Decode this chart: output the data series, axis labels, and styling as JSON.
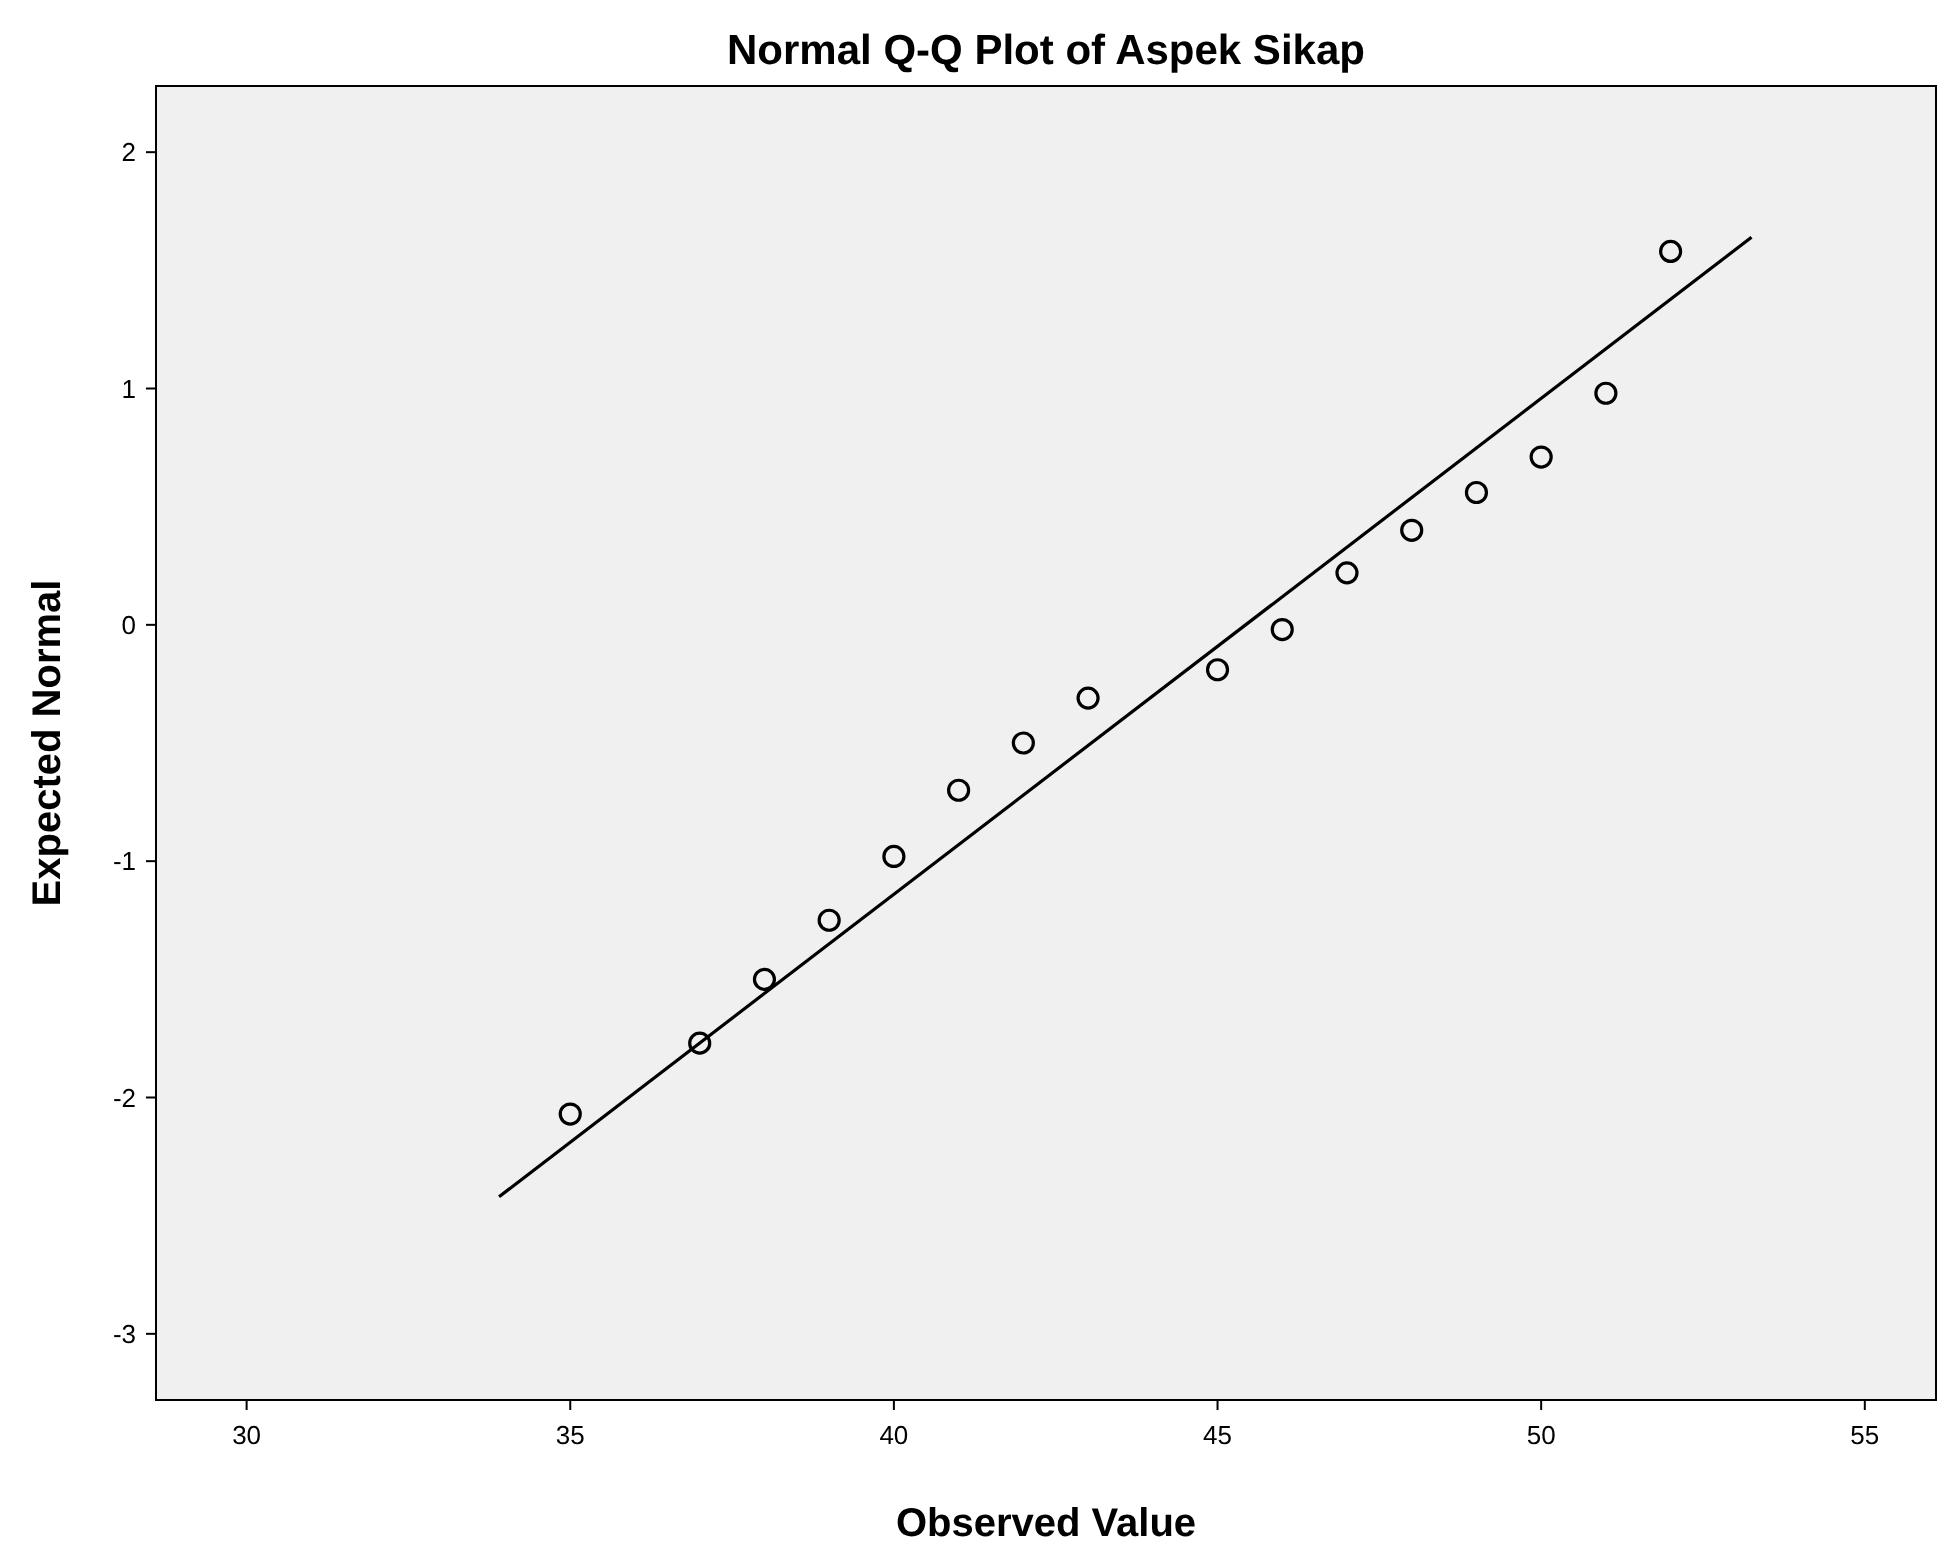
{
  "chart_data": {
    "type": "scatter",
    "title": "Normal Q-Q Plot of Aspek Sikap",
    "xlabel": "Observed Value",
    "ylabel": "Expected Normal",
    "xlim": [
      28.6,
      56.1
    ],
    "xticks": [
      30,
      35,
      40,
      45,
      50,
      55
    ],
    "ylim": [
      -3.28,
      2.28
    ],
    "yticks": [
      -3,
      -2,
      -1,
      0,
      1,
      2
    ],
    "grid": false,
    "series": [
      {
        "color": "#000000",
        "marker": "circle",
        "x": [
          35,
          37,
          38,
          39,
          40,
          41,
          42,
          43,
          45,
          46,
          47,
          48,
          49,
          50,
          51,
          52
        ],
        "values": [
          -2.07,
          -1.77,
          -1.5,
          -1.25,
          -0.98,
          -0.7,
          -0.5,
          -0.31,
          -0.19,
          -0.02,
          0.22,
          0.4,
          0.56,
          0.71,
          0.98,
          1.58
        ]
      },
      {
        "type": "line",
        "color": "#000000",
        "marker": "none",
        "line_style": "solid",
        "x": [
          33.9,
          53.25
        ],
        "values": [
          -2.42,
          1.64
        ]
      }
    ]
  }
}
